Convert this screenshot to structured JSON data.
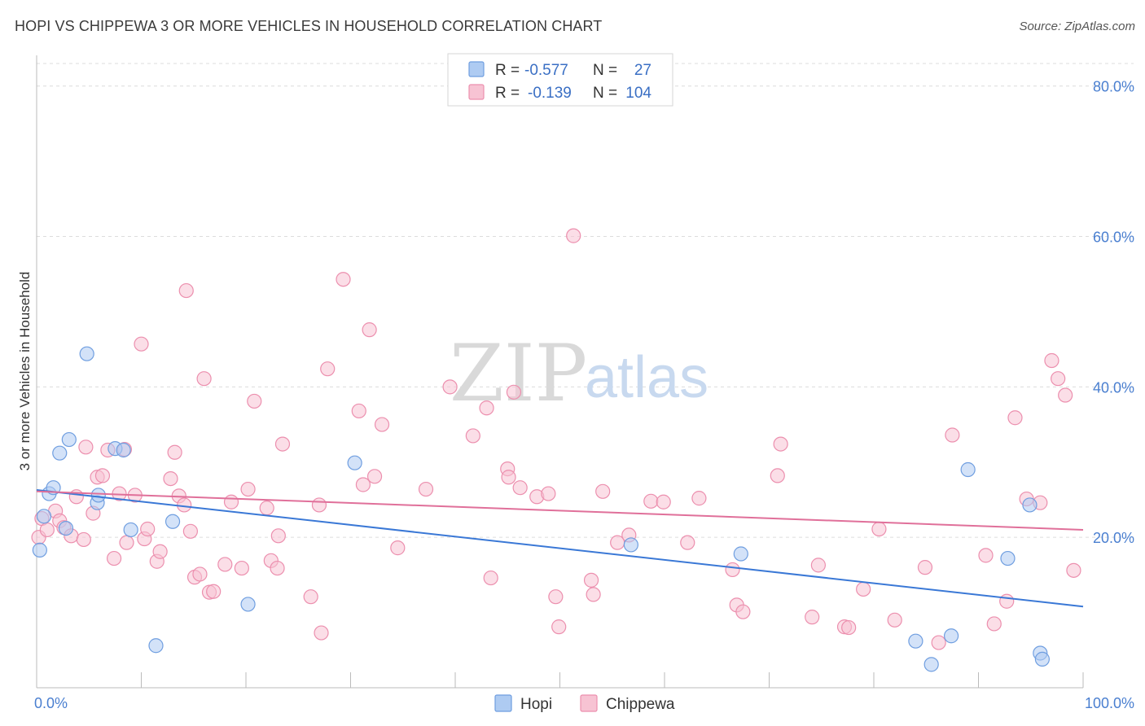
{
  "header": {
    "title": "HOPI VS CHIPPEWA 3 OR MORE VEHICLES IN HOUSEHOLD CORRELATION CHART",
    "source": "Source: ZipAtlas.com"
  },
  "watermark": {
    "zip": "ZIP",
    "atlas": "atlas"
  },
  "legend": {
    "hopi": {
      "r_label": "R =",
      "r_value": "-0.577",
      "n_label": "N =",
      "n_value": "27"
    },
    "chippewa": {
      "r_label": "R =",
      "r_value": "-0.139",
      "n_label": "N =",
      "n_value": "104"
    }
  },
  "colors": {
    "hopi_fill": "#aecbf2",
    "hopi_stroke": "#6f9ee0",
    "hopi_line": "#3a78d6",
    "chippewa_fill": "#f7c3d3",
    "chippewa_stroke": "#ec8fae",
    "chippewa_line": "#e0709a",
    "tick_text": "#4a7fd0",
    "grid": "#dcdcdc"
  },
  "chart_data": {
    "type": "scatter",
    "title": "HOPI VS CHIPPEWA 3 OR MORE VEHICLES IN HOUSEHOLD CORRELATION CHART",
    "xlabel": "",
    "ylabel": "3 or more Vehicles in Household",
    "xlim": [
      0,
      100
    ],
    "ylim": [
      0,
      83
    ],
    "x_tick_labels": [
      "0.0%",
      "100.0%"
    ],
    "y_ticks": [
      20,
      40,
      60,
      80
    ],
    "y_tick_labels": [
      "20.0%",
      "40.0%",
      "60.0%",
      "80.0%"
    ],
    "grid": true,
    "legend_position": "top-center",
    "series": [
      {
        "name": "Hopi",
        "points": [
          [
            0.3,
            18.3
          ],
          [
            0.7,
            22.8
          ],
          [
            1.2,
            25.8
          ],
          [
            1.6,
            26.6
          ],
          [
            2.2,
            31.2
          ],
          [
            2.8,
            21.2
          ],
          [
            3.1,
            33.0
          ],
          [
            4.8,
            44.4
          ],
          [
            5.8,
            24.6
          ],
          [
            5.9,
            25.6
          ],
          [
            7.5,
            31.8
          ],
          [
            8.3,
            31.6
          ],
          [
            9.0,
            21.0
          ],
          [
            11.4,
            5.6
          ],
          [
            13.0,
            22.1
          ],
          [
            20.2,
            11.1
          ],
          [
            30.4,
            29.9
          ],
          [
            56.8,
            19.0
          ],
          [
            67.3,
            17.8
          ],
          [
            84.0,
            6.2
          ],
          [
            85.5,
            3.1
          ],
          [
            87.4,
            6.9
          ],
          [
            89.0,
            29.0
          ],
          [
            92.8,
            17.2
          ],
          [
            94.9,
            24.3
          ],
          [
            95.9,
            4.6
          ],
          [
            96.1,
            3.8
          ]
        ],
        "trend": [
          [
            0,
            26.3
          ],
          [
            100,
            10.8
          ]
        ]
      },
      {
        "name": "Chippewa",
        "points": [
          [
            0.2,
            20.0
          ],
          [
            0.5,
            22.5
          ],
          [
            1.0,
            21.0
          ],
          [
            1.8,
            23.5
          ],
          [
            2.2,
            22.2
          ],
          [
            2.6,
            21.3
          ],
          [
            3.3,
            20.2
          ],
          [
            3.8,
            25.4
          ],
          [
            4.5,
            19.7
          ],
          [
            4.7,
            32.0
          ],
          [
            5.4,
            23.2
          ],
          [
            5.8,
            28.0
          ],
          [
            6.3,
            28.2
          ],
          [
            6.8,
            31.6
          ],
          [
            7.4,
            17.2
          ],
          [
            7.9,
            25.8
          ],
          [
            8.4,
            31.7
          ],
          [
            8.6,
            19.3
          ],
          [
            9.4,
            25.6
          ],
          [
            10.0,
            45.7
          ],
          [
            10.3,
            19.8
          ],
          [
            10.6,
            21.1
          ],
          [
            11.5,
            16.8
          ],
          [
            11.8,
            18.1
          ],
          [
            12.8,
            27.8
          ],
          [
            13.2,
            31.3
          ],
          [
            13.6,
            25.5
          ],
          [
            14.1,
            24.3
          ],
          [
            14.3,
            52.8
          ],
          [
            14.7,
            20.8
          ],
          [
            15.1,
            14.7
          ],
          [
            15.6,
            15.1
          ],
          [
            16.0,
            41.1
          ],
          [
            16.5,
            12.7
          ],
          [
            16.9,
            12.8
          ],
          [
            18.0,
            16.4
          ],
          [
            18.6,
            24.7
          ],
          [
            19.6,
            15.9
          ],
          [
            20.2,
            26.4
          ],
          [
            20.8,
            38.1
          ],
          [
            22.0,
            23.9
          ],
          [
            22.4,
            16.9
          ],
          [
            23.1,
            20.2
          ],
          [
            23.5,
            32.4
          ],
          [
            23.0,
            15.9
          ],
          [
            26.2,
            12.1
          ],
          [
            27.0,
            24.3
          ],
          [
            27.2,
            7.3
          ],
          [
            27.8,
            42.4
          ],
          [
            29.3,
            54.3
          ],
          [
            30.8,
            36.8
          ],
          [
            31.2,
            27.0
          ],
          [
            31.8,
            47.6
          ],
          [
            32.3,
            28.1
          ],
          [
            33.0,
            35.0
          ],
          [
            34.5,
            18.6
          ],
          [
            37.2,
            26.4
          ],
          [
            39.5,
            40.0
          ],
          [
            41.7,
            33.5
          ],
          [
            43.0,
            37.2
          ],
          [
            43.4,
            14.6
          ],
          [
            45.0,
            29.1
          ],
          [
            45.1,
            28.0
          ],
          [
            45.6,
            39.3
          ],
          [
            46.2,
            26.6
          ],
          [
            47.8,
            25.4
          ],
          [
            48.9,
            25.8
          ],
          [
            49.6,
            12.1
          ],
          [
            49.9,
            8.1
          ],
          [
            51.3,
            60.1
          ],
          [
            53.0,
            14.3
          ],
          [
            53.2,
            12.4
          ],
          [
            54.1,
            26.1
          ],
          [
            55.5,
            19.3
          ],
          [
            56.6,
            20.3
          ],
          [
            58.7,
            24.8
          ],
          [
            59.9,
            24.7
          ],
          [
            62.2,
            19.3
          ],
          [
            63.3,
            25.2
          ],
          [
            66.5,
            15.7
          ],
          [
            66.9,
            11.0
          ],
          [
            67.5,
            10.1
          ],
          [
            70.8,
            28.2
          ],
          [
            71.1,
            32.4
          ],
          [
            74.1,
            9.4
          ],
          [
            74.7,
            16.3
          ],
          [
            77.2,
            8.1
          ],
          [
            77.6,
            8.0
          ],
          [
            79.0,
            13.1
          ],
          [
            80.5,
            21.1
          ],
          [
            82.0,
            9.0
          ],
          [
            84.9,
            16.0
          ],
          [
            86.2,
            6.0
          ],
          [
            87.5,
            33.6
          ],
          [
            90.7,
            17.6
          ],
          [
            91.5,
            8.5
          ],
          [
            92.7,
            11.5
          ],
          [
            93.5,
            35.9
          ],
          [
            94.6,
            25.1
          ],
          [
            95.9,
            24.6
          ],
          [
            97.0,
            43.5
          ],
          [
            97.6,
            41.1
          ],
          [
            98.3,
            38.9
          ],
          [
            99.1,
            15.6
          ]
        ],
        "trend": [
          [
            0,
            26.1
          ],
          [
            100,
            21.0
          ]
        ]
      }
    ]
  },
  "bottom_legend": {
    "hopi_label": "Hopi",
    "chippewa_label": "Chippewa"
  }
}
